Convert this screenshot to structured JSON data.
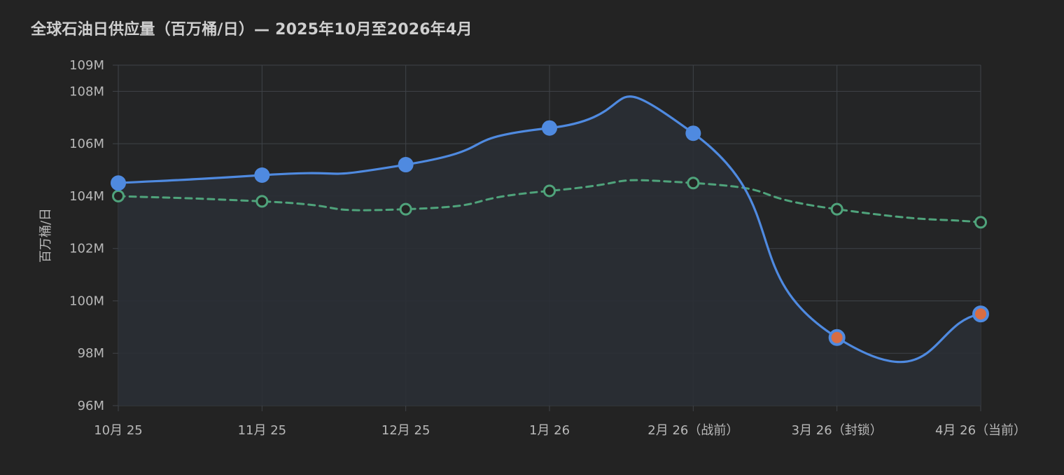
{
  "title": "全球石油日供应量（百万桶/日）— 2025年10月至2026年4月",
  "colors": {
    "background": "#232323",
    "grid": "#3f4348",
    "supply": "#4f8ae0",
    "supply_fill": "#2a2f35",
    "demand": "#4fa37b",
    "highlight_point": "#d86d43"
  },
  "chart_data": {
    "type": "line",
    "title": "全球石油日供应量（百万桶/日）— 2025年10月至2026年4月",
    "xlabel": "",
    "ylabel": "百万桶/日",
    "categories": [
      "10月 25",
      "11月 25",
      "12月 25",
      "1月 26",
      "2月 26（战前）",
      "3月 26（封锁）",
      "4月 26（当前）"
    ],
    "yticks": [
      96,
      98,
      100,
      102,
      104,
      106,
      108,
      109
    ],
    "ytick_labels": [
      "96M",
      "98M",
      "100M",
      "102M",
      "104M",
      "106M",
      "108M",
      "109M"
    ],
    "ylim": [
      96,
      109
    ],
    "grid": true,
    "legend": "none",
    "series": [
      {
        "values": [
          104.5,
          104.8,
          105.2,
          106.6,
          106.4,
          98.6,
          99.5
        ],
        "style": "solid",
        "fill_area": true,
        "highlighted_indices": [
          5,
          6
        ]
      },
      {
        "values": [
          104.0,
          103.8,
          103.5,
          104.2,
          104.5,
          103.5,
          103.0
        ],
        "style": "dashed",
        "marker": "hollow-circle"
      }
    ]
  }
}
